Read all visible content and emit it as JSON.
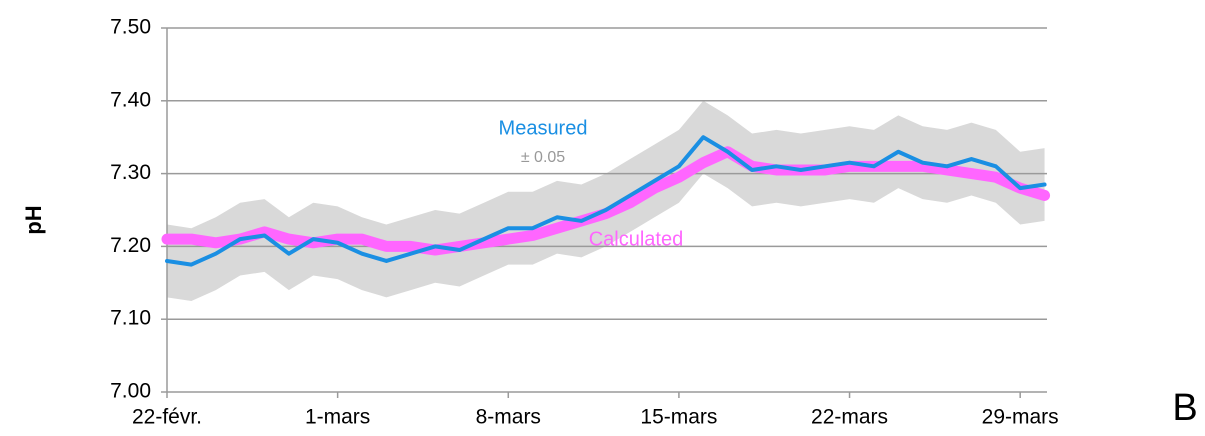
{
  "chart_data": {
    "type": "line",
    "y_label": "pH",
    "panel_label": "B",
    "x": [
      0,
      1,
      2,
      3,
      4,
      5,
      6,
      7,
      8,
      9,
      10,
      11,
      12,
      13,
      14,
      15,
      16,
      17,
      18,
      19,
      20,
      21,
      22,
      23,
      24,
      25,
      26,
      27,
      28,
      29,
      30,
      31,
      32,
      33,
      34,
      35,
      36
    ],
    "xlim": [
      0,
      36.1
    ],
    "xticks": [
      {
        "value": 0,
        "label": "22-févr."
      },
      {
        "value": 7,
        "label": "1-mars"
      },
      {
        "value": 14,
        "label": "8-mars"
      },
      {
        "value": 21,
        "label": "15-mars"
      },
      {
        "value": 28,
        "label": "22-mars"
      },
      {
        "value": 35,
        "label": "29-mars"
      }
    ],
    "ylim": [
      7.0,
      7.5
    ],
    "yticks": [
      {
        "value": 7.0,
        "label": "7.00"
      },
      {
        "value": 7.1,
        "label": "7.10"
      },
      {
        "value": 7.2,
        "label": "7.20"
      },
      {
        "value": 7.3,
        "label": "7.30"
      },
      {
        "value": 7.4,
        "label": "7.40"
      },
      {
        "value": 7.5,
        "label": "7.50"
      }
    ],
    "grid": true,
    "band": {
      "error": 0.05,
      "label": "± 0.05",
      "color": "#d9d9d9"
    },
    "series": [
      {
        "name": "Measured",
        "color": "#1a8fe3",
        "values": [
          7.18,
          7.175,
          7.19,
          7.21,
          7.215,
          7.19,
          7.21,
          7.205,
          7.19,
          7.18,
          7.19,
          7.2,
          7.195,
          7.21,
          7.225,
          7.225,
          7.24,
          7.235,
          7.25,
          7.27,
          7.29,
          7.31,
          7.35,
          7.33,
          7.305,
          7.31,
          7.305,
          7.31,
          7.315,
          7.31,
          7.33,
          7.315,
          7.31,
          7.32,
          7.31,
          7.28,
          7.285
        ]
      },
      {
        "name": "Calculated",
        "color": "#ff66ff",
        "values": [
          7.21,
          7.21,
          7.205,
          7.21,
          7.22,
          7.21,
          7.205,
          7.21,
          7.21,
          7.2,
          7.2,
          7.195,
          7.2,
          7.205,
          7.21,
          7.215,
          7.225,
          7.235,
          7.245,
          7.26,
          7.28,
          7.295,
          7.315,
          7.33,
          7.31,
          7.305,
          7.305,
          7.305,
          7.31,
          7.31,
          7.31,
          7.31,
          7.305,
          7.3,
          7.295,
          7.28,
          7.27
        ]
      }
    ]
  }
}
